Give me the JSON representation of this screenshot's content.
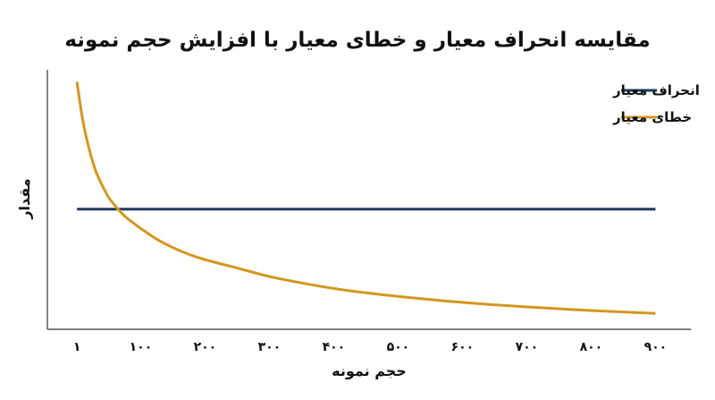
{
  "chart_data": {
    "type": "line",
    "title": "مقایسه انحراف معیار و خطای معیار با افزایش حجم نمونه",
    "xlabel": "حجم نمونه",
    "ylabel": "مقدار",
    "x_ticks": [
      1,
      100,
      200,
      300,
      400,
      500,
      600,
      700,
      800,
      900
    ],
    "x_tick_labels": [
      "۱",
      "۱۰۰",
      "۲۰۰",
      "۳۰۰",
      "۴۰۰",
      "۵۰۰",
      "۶۰۰",
      "۷۰۰",
      "۸۰۰",
      "۹۰۰"
    ],
    "xlim": [
      -45,
      955
    ],
    "ylim": [
      0,
      10.8
    ],
    "y_ticks_shown": false,
    "grid": false,
    "legend_position": "top-right",
    "series": [
      {
        "name": "انحراف معیار",
        "color": "#1d3a5f",
        "x": [
          1,
          900
        ],
        "y": [
          5.0,
          5.0
        ]
      },
      {
        "name": "خطای معیار",
        "color": "#d4961f",
        "x": [
          1,
          10,
          20,
          30,
          40,
          50,
          60,
          70,
          80,
          90,
          100,
          125,
          150,
          175,
          200,
          250,
          300,
          350,
          400,
          450,
          500,
          600,
          700,
          800,
          900
        ],
        "y": [
          10.3,
          8.7,
          7.5,
          6.6,
          6.0,
          5.5,
          5.15,
          4.85,
          4.6,
          4.4,
          4.2,
          3.75,
          3.4,
          3.12,
          2.9,
          2.55,
          2.2,
          1.93,
          1.7,
          1.52,
          1.37,
          1.12,
          0.93,
          0.78,
          0.66
        ]
      }
    ]
  }
}
